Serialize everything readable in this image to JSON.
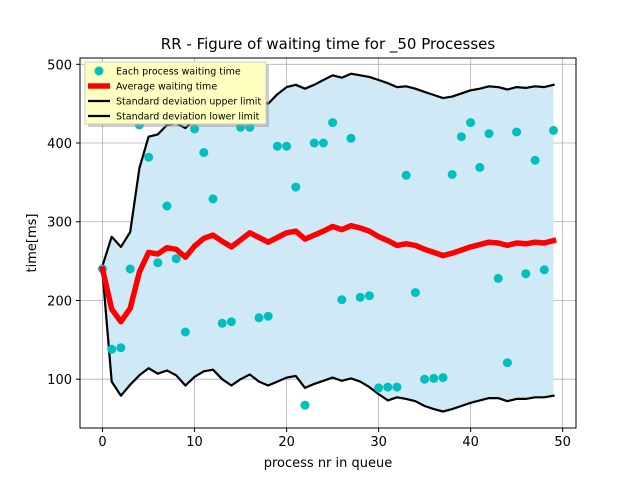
{
  "chart_data": {
    "type": "line",
    "title": "RR - Figure of waiting time for _50 Processes",
    "xlabel": "process nr in queue",
    "ylabel": "time[ms]",
    "xlim": [
      -2.45,
      51.45
    ],
    "ylim": [
      38,
      508
    ],
    "xticks": [
      0,
      10,
      20,
      30,
      40,
      50
    ],
    "yticks": [
      100,
      200,
      300,
      400,
      500
    ],
    "grid": true,
    "legend_position": "top-left",
    "colors": {
      "scatter": "#00bfbf",
      "average": "#ff0000",
      "std": "#000000",
      "band": "#d0e9f6",
      "legend_bg": "#ffffc0"
    },
    "series": [
      {
        "name": "Each process waiting time",
        "kind": "scatter",
        "x": [
          0,
          1,
          2,
          3,
          4,
          5,
          6,
          7,
          8,
          9,
          10,
          11,
          12,
          13,
          14,
          15,
          16,
          17,
          18,
          19,
          20,
          21,
          22,
          23,
          24,
          25,
          26,
          27,
          28,
          29,
          30,
          31,
          32,
          33,
          34,
          35,
          36,
          37,
          38,
          39,
          40,
          41,
          42,
          43,
          44,
          45,
          46,
          47,
          48,
          49
        ],
        "y": [
          240,
          138,
          140,
          240,
          423,
          382,
          248,
          320,
          253,
          160,
          418,
          388,
          329,
          171,
          173,
          420,
          420,
          178,
          180,
          396,
          396,
          344,
          67,
          400,
          400,
          426,
          201,
          406,
          204,
          206,
          89,
          90,
          90,
          359,
          210,
          100,
          101,
          102,
          360,
          408,
          426,
          369,
          412,
          228,
          121,
          414,
          234,
          378,
          239,
          416
        ]
      },
      {
        "name": "Average waiting time",
        "kind": "line",
        "x": [
          0,
          1,
          2,
          3,
          4,
          5,
          6,
          7,
          8,
          9,
          10,
          11,
          12,
          13,
          14,
          15,
          16,
          17,
          18,
          19,
          20,
          21,
          22,
          23,
          24,
          25,
          26,
          27,
          28,
          29,
          30,
          31,
          32,
          33,
          34,
          35,
          36,
          37,
          38,
          39,
          40,
          41,
          42,
          43,
          44,
          45,
          46,
          47,
          48,
          49
        ],
        "y": [
          240,
          189,
          173,
          190,
          236,
          261,
          259,
          267,
          265,
          255,
          269,
          279,
          283,
          275,
          268,
          277,
          286,
          280,
          274,
          280,
          286,
          288,
          278,
          283,
          288,
          294,
          290,
          295,
          292,
          288,
          281,
          276,
          270,
          272,
          270,
          265,
          261,
          257,
          260,
          264,
          268,
          271,
          274,
          273,
          270,
          273,
          272,
          274,
          273,
          276
        ]
      },
      {
        "name": "Standard deviation upper limit",
        "kind": "line",
        "x": [
          0,
          1,
          2,
          3,
          4,
          5,
          6,
          7,
          8,
          9,
          10,
          11,
          12,
          13,
          14,
          15,
          16,
          17,
          18,
          19,
          20,
          21,
          22,
          23,
          24,
          25,
          26,
          27,
          28,
          29,
          30,
          31,
          32,
          33,
          34,
          35,
          36,
          37,
          38,
          39,
          40,
          41,
          42,
          43,
          44,
          45,
          46,
          47,
          48,
          49
        ],
        "y": [
          244,
          281,
          268,
          287,
          368,
          408,
          411,
          423,
          425,
          419,
          430,
          438,
          445,
          435,
          428,
          446,
          455,
          454,
          450,
          462,
          471,
          474,
          469,
          474,
          480,
          486,
          483,
          488,
          486,
          484,
          480,
          476,
          471,
          472,
          469,
          465,
          461,
          457,
          459,
          463,
          467,
          469,
          472,
          471,
          468,
          471,
          470,
          472,
          471,
          474
        ]
      },
      {
        "name": "Standard deviation lower limit",
        "kind": "line",
        "x": [
          0,
          1,
          2,
          3,
          4,
          5,
          6,
          7,
          8,
          9,
          10,
          11,
          12,
          13,
          14,
          15,
          16,
          17,
          18,
          19,
          20,
          21,
          22,
          23,
          24,
          25,
          26,
          27,
          28,
          29,
          30,
          31,
          32,
          33,
          34,
          35,
          36,
          37,
          38,
          39,
          40,
          41,
          42,
          43,
          44,
          45,
          46,
          47,
          48,
          49
        ],
        "y": [
          236,
          97,
          79,
          93,
          105,
          114,
          107,
          111,
          105,
          92,
          103,
          110,
          112,
          100,
          92,
          100,
          106,
          97,
          92,
          97,
          102,
          104,
          89,
          94,
          98,
          102,
          98,
          101,
          97,
          90,
          81,
          73,
          77,
          75,
          72,
          66,
          62,
          59,
          62,
          66,
          70,
          73,
          76,
          76,
          72,
          75,
          75,
          77,
          77,
          79
        ]
      }
    ]
  }
}
